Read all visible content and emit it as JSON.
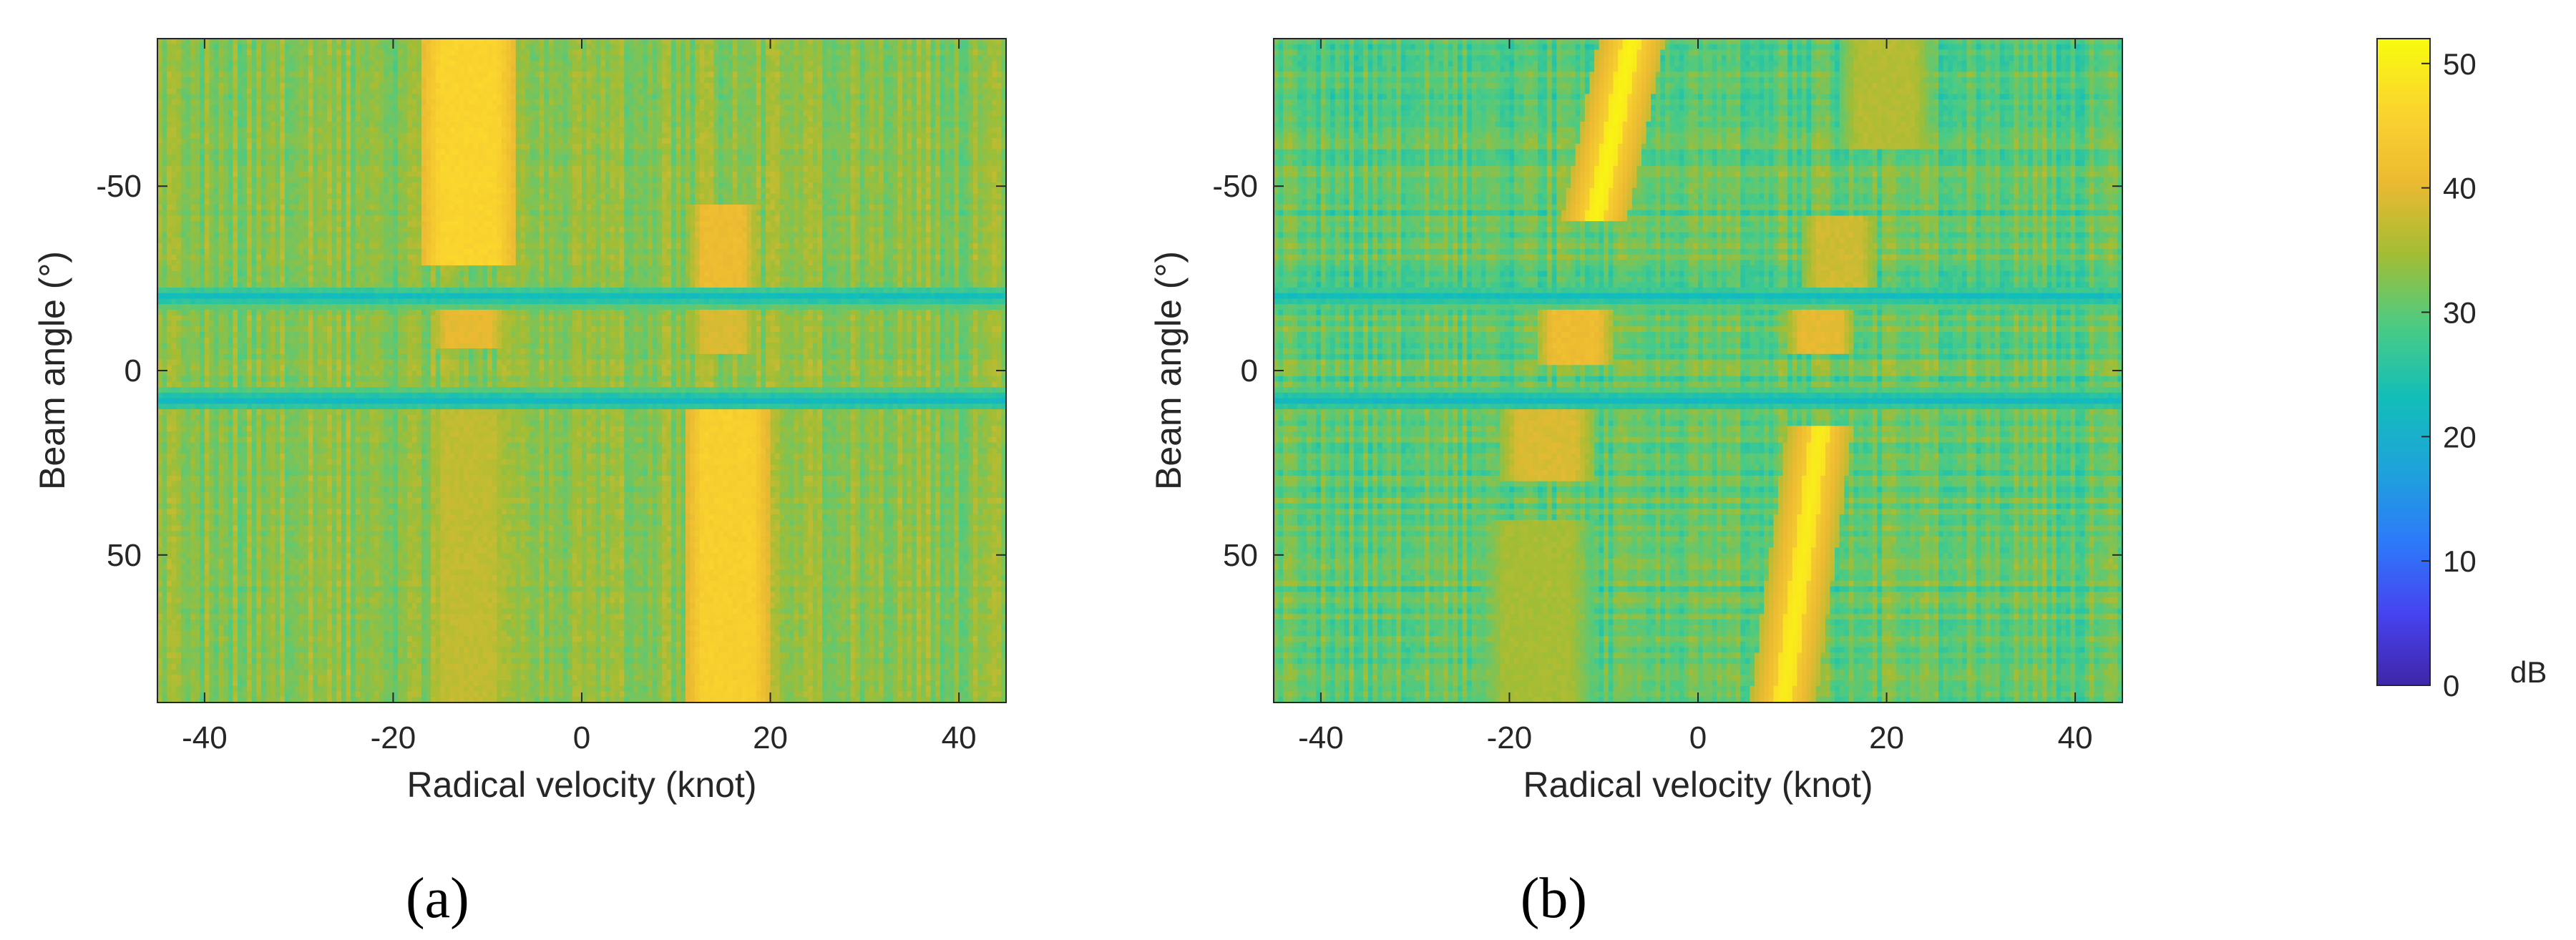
{
  "chart_data": [
    {
      "type": "heatmap",
      "panel_label": "(a)",
      "xlabel": "Radical velocity (knot)",
      "ylabel": "Beam angle (°)",
      "xlim": [
        -45,
        45
      ],
      "ylim": [
        -90,
        90
      ],
      "y_reversed": true,
      "x_ticks": [
        -40,
        -20,
        0,
        20,
        40
      ],
      "y_ticks": [
        -50,
        0,
        50
      ],
      "color_scale": {
        "min": 0,
        "max": 52,
        "unit": "dB",
        "colormap": "parula"
      },
      "background_level_dB": 33,
      "features": [
        {
          "name": "strong band",
          "x_center": -12,
          "x_width": 10,
          "y_range": [
            -90,
            -28
          ],
          "level_dB": 46
        },
        {
          "name": "strong band",
          "x_center": -12,
          "x_width": 8,
          "y_range": [
            -20,
            -6
          ],
          "level_dB": 40
        },
        {
          "name": "moderate band",
          "x_center": -12,
          "x_width": 9,
          "y_range": [
            10,
            90
          ],
          "level_dB": 37
        },
        {
          "name": "moderate band",
          "x_center": 15,
          "x_width": 7,
          "y_range": [
            -45,
            -20
          ],
          "level_dB": 41
        },
        {
          "name": "moderate band",
          "x_center": 15,
          "x_width": 7,
          "y_range": [
            -16,
            -4
          ],
          "level_dB": 39
        },
        {
          "name": "strong band",
          "x_center": 15.5,
          "x_width": 9,
          "y_range": [
            10,
            90
          ],
          "level_dB": 45
        },
        {
          "name": "low-level line",
          "y": -20,
          "level_dB": 22
        },
        {
          "name": "low-level line",
          "y": 8,
          "level_dB": 21
        }
      ]
    },
    {
      "type": "heatmap",
      "panel_label": "(b)",
      "xlabel": "Radical velocity (knot)",
      "ylabel": "Beam angle (°)",
      "xlim": [
        -45,
        45
      ],
      "ylim": [
        -90,
        90
      ],
      "y_reversed": true,
      "x_ticks": [
        -40,
        -20,
        0,
        20,
        40
      ],
      "y_ticks": [
        -50,
        0,
        50
      ],
      "color_scale": {
        "min": 0,
        "max": 52,
        "unit": "dB",
        "colormap": "parula"
      },
      "background_level_dB": 30,
      "features": [
        {
          "name": "bright diagonal track",
          "from": [
            -11,
            -40
          ],
          "to": [
            -7,
            -90
          ],
          "level_dB": 51
        },
        {
          "name": "bright diagonal track",
          "from": [
            9,
            90
          ],
          "to": [
            13,
            15
          ],
          "level_dB": 50
        },
        {
          "name": "moderate band",
          "x_center": -13,
          "x_width": 8,
          "y_range": [
            -20,
            -2
          ],
          "level_dB": 41
        },
        {
          "name": "moderate band",
          "x_center": -16,
          "x_width": 10,
          "y_range": [
            8,
            30
          ],
          "level_dB": 39
        },
        {
          "name": "moderate band",
          "x_center": 15,
          "x_width": 8,
          "y_range": [
            -42,
            -22
          ],
          "level_dB": 38
        },
        {
          "name": "moderate band",
          "x_center": 13,
          "x_width": 7,
          "y_range": [
            -18,
            -4
          ],
          "level_dB": 40
        },
        {
          "name": "faint band",
          "x_center": 20,
          "x_width": 10,
          "y_range": [
            -90,
            -60
          ],
          "level_dB": 36
        },
        {
          "name": "faint band",
          "x_center": -17,
          "x_width": 12,
          "y_range": [
            40,
            90
          ],
          "level_dB": 35
        },
        {
          "name": "low-level line",
          "y": -20,
          "level_dB": 22
        },
        {
          "name": "low-level line",
          "y": 8,
          "level_dB": 21
        }
      ]
    }
  ],
  "colorbar": {
    "ticks": [
      0,
      10,
      20,
      30,
      40,
      50
    ],
    "min": 0,
    "max": 52,
    "unit_label": "dB",
    "colors": [
      "#3E26A8",
      "#4743F0",
      "#2C7AF9",
      "#1EA3DA",
      "#12BEB9",
      "#4BCB84",
      "#A3BD34",
      "#ECBA32",
      "#FAD52E",
      "#F9FB0E"
    ]
  }
}
